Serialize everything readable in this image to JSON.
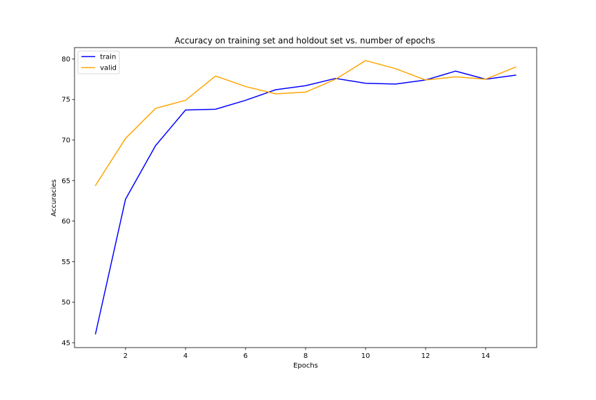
{
  "chart_data": {
    "type": "line",
    "title": "Accuracy on training set and holdout set vs. number of epochs",
    "xlabel": "Epochs",
    "ylabel": "Accuracies",
    "xlim": [
      0.3,
      15.7
    ],
    "ylim": [
      44.4,
      81.4
    ],
    "xticks": [
      2,
      4,
      6,
      8,
      10,
      12,
      14
    ],
    "yticks": [
      45,
      50,
      55,
      60,
      65,
      70,
      75,
      80
    ],
    "grid": false,
    "legend_position": "upper-left",
    "x": [
      1,
      2,
      3,
      4,
      5,
      6,
      7,
      8,
      9,
      10,
      11,
      12,
      13,
      14,
      15
    ],
    "series": [
      {
        "name": "train",
        "color": "#0000ff",
        "values": [
          46.1,
          62.7,
          69.3,
          73.7,
          73.8,
          74.9,
          76.2,
          76.7,
          77.6,
          77.0,
          76.9,
          77.4,
          78.5,
          77.5,
          78.0
        ]
      },
      {
        "name": "valid",
        "color": "#ffa500",
        "values": [
          64.4,
          70.2,
          73.9,
          74.9,
          77.9,
          76.6,
          75.7,
          75.9,
          77.5,
          79.8,
          78.8,
          77.4,
          77.8,
          77.5,
          79.0
        ]
      }
    ]
  }
}
